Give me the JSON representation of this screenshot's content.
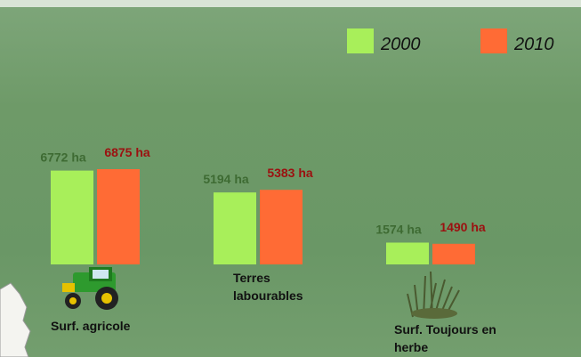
{
  "chart_data": {
    "type": "bar",
    "categories": [
      "Surf. agricole",
      "Terres labourables",
      "Surf. Toujours en herbe"
    ],
    "series": [
      {
        "name": "2000",
        "color": "#a8ef5a",
        "label_color": "#3e6b33",
        "values": [
          6772,
          5194,
          1574
        ],
        "value_labels": [
          "6772 ha",
          "5194 ha",
          "1574 ha"
        ]
      },
      {
        "name": "2010",
        "color": "#ff6b35",
        "label_color": "#9c1010",
        "values": [
          6875,
          5383,
          1490
        ],
        "value_labels": [
          "6875 ha",
          "5383 ha",
          "1490 ha"
        ]
      }
    ]
  }
}
